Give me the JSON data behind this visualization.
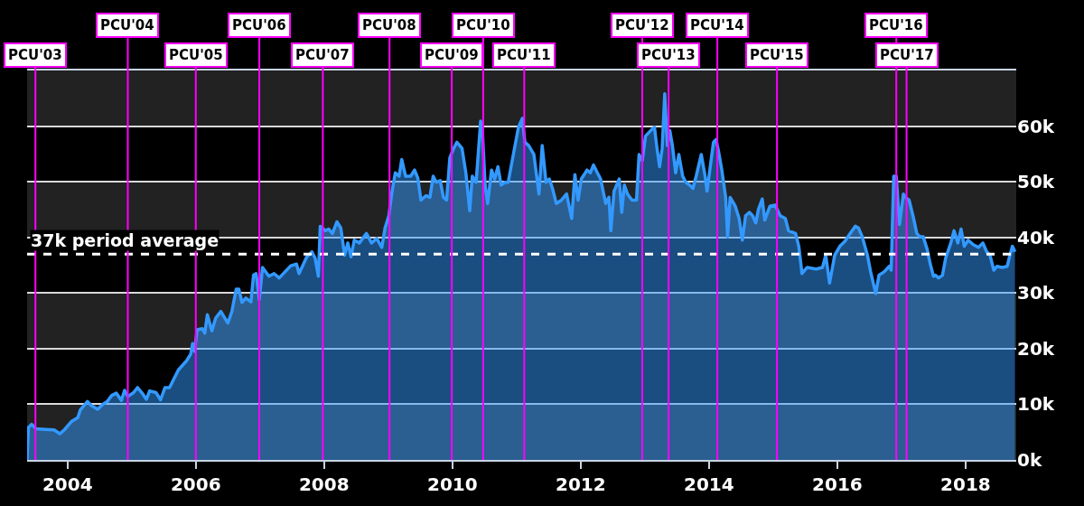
{
  "chart_data": {
    "type": "area",
    "x": [
      2003.37,
      2003.39,
      2003.44,
      2003.51,
      2003.65,
      2003.79,
      2003.88,
      2003.95,
      2004.06,
      2004.16,
      2004.2,
      2004.31,
      2004.37,
      2004.47,
      2004.55,
      2004.62,
      2004.69,
      2004.76,
      2004.84,
      2004.89,
      2004.94,
      2005.03,
      2005.09,
      2005.17,
      2005.23,
      2005.28,
      2005.38,
      2005.45,
      2005.52,
      2005.59,
      2005.66,
      2005.73,
      2005.8,
      2005.86,
      2005.92,
      2005.95,
      2005.98,
      2006.02,
      2006.1,
      2006.14,
      2006.18,
      2006.25,
      2006.31,
      2006.39,
      2006.5,
      2006.56,
      2006.63,
      2006.67,
      2006.72,
      2006.78,
      2006.86,
      2006.9,
      2006.94,
      2006.99,
      2007.04,
      2007.14,
      2007.22,
      2007.3,
      2007.48,
      2007.57,
      2007.61,
      2007.73,
      2007.81,
      2007.86,
      2007.91,
      2007.94,
      2008.02,
      2008.07,
      2008.13,
      2008.2,
      2008.26,
      2008.32,
      2008.37,
      2008.42,
      2008.47,
      2008.55,
      2008.66,
      2008.74,
      2008.82,
      2008.9,
      2008.95,
      2009.01,
      2009.06,
      2009.11,
      2009.17,
      2009.21,
      2009.27,
      2009.35,
      2009.41,
      2009.46,
      2009.51,
      2009.59,
      2009.65,
      2009.7,
      2009.75,
      2009.81,
      2009.86,
      2009.91,
      2009.96,
      2010.02,
      2010.07,
      2010.15,
      2010.21,
      2010.27,
      2010.31,
      2010.37,
      2010.44,
      2010.47,
      2010.51,
      2010.55,
      2010.61,
      2010.66,
      2010.71,
      2010.76,
      2010.82,
      2010.87,
      2010.95,
      2011.03,
      2011.09,
      2011.13,
      2011.19,
      2011.27,
      2011.35,
      2011.4,
      2011.46,
      2011.51,
      2011.56,
      2011.62,
      2011.7,
      2011.78,
      2011.86,
      2011.91,
      2011.96,
      2012.01,
      2012.1,
      2012.15,
      2012.2,
      2012.26,
      2012.31,
      2012.39,
      2012.44,
      2012.47,
      2012.52,
      2012.6,
      2012.64,
      2012.68,
      2012.73,
      2012.8,
      2012.87,
      2012.91,
      2012.96,
      2013.01,
      2013.1,
      2013.15,
      2013.19,
      2013.23,
      2013.27,
      2013.31,
      2013.35,
      2013.39,
      2013.43,
      2013.48,
      2013.53,
      2013.59,
      2013.64,
      2013.7,
      2013.75,
      2013.8,
      2013.88,
      2013.94,
      2013.97,
      2014.02,
      2014.07,
      2014.11,
      2014.15,
      2014.2,
      2014.26,
      2014.29,
      2014.33,
      2014.41,
      2014.47,
      2014.52,
      2014.57,
      2014.63,
      2014.68,
      2014.73,
      2014.77,
      2014.83,
      2014.87,
      2014.95,
      2015.03,
      2015.11,
      2015.19,
      2015.24,
      2015.35,
      2015.4,
      2015.45,
      2015.53,
      2015.67,
      2015.77,
      2015.82,
      2015.88,
      2015.96,
      2016.04,
      2016.12,
      2016.2,
      2016.28,
      2016.33,
      2016.39,
      2016.47,
      2016.52,
      2016.6,
      2016.65,
      2016.73,
      2016.81,
      2016.84,
      2016.88,
      2016.92,
      2016.97,
      2017.03,
      2017.06,
      2017.12,
      2017.18,
      2017.24,
      2017.29,
      2017.34,
      2017.4,
      2017.45,
      2017.5,
      2017.53,
      2017.58,
      2017.64,
      2017.69,
      2017.77,
      2017.82,
      2017.88,
      2017.93,
      2017.98,
      2018.04,
      2018.12,
      2018.2,
      2018.27,
      2018.33,
      2018.38,
      2018.44,
      2018.49,
      2018.57,
      2018.65,
      2018.68,
      2018.73,
      2018.77
    ],
    "series": [
      {
        "color": "#3399ff",
        "values": [
          0,
          5800,
          6400,
          5600,
          5500,
          5400,
          4700,
          5400,
          6900,
          7600,
          9000,
          10500,
          9800,
          9100,
          10000,
          10500,
          11600,
          12000,
          10700,
          12500,
          11400,
          12100,
          13000,
          11900,
          10900,
          12400,
          12100,
          10800,
          13000,
          13000,
          14600,
          16200,
          17100,
          17900,
          19000,
          20900,
          19500,
          23400,
          23600,
          22800,
          26100,
          23200,
          25500,
          26700,
          24600,
          26600,
          30700,
          30700,
          28300,
          29100,
          28400,
          33200,
          33500,
          28800,
          34600,
          33000,
          33500,
          32700,
          34900,
          35200,
          33500,
          36500,
          37400,
          36300,
          33000,
          42000,
          41200,
          41500,
          40700,
          42800,
          41700,
          36800,
          39000,
          36500,
          39500,
          39000,
          40700,
          39000,
          39800,
          38200,
          41700,
          43900,
          48300,
          51600,
          51000,
          54000,
          51000,
          51000,
          52100,
          50700,
          46700,
          47500,
          47200,
          51000,
          49900,
          50200,
          47200,
          46700,
          54300,
          56000,
          57100,
          56000,
          51600,
          44800,
          51000,
          49900,
          60900,
          58700,
          49400,
          46100,
          52100,
          50500,
          52700,
          49400,
          49900,
          49900,
          54900,
          59800,
          61400,
          57100,
          56500,
          54900,
          47800,
          56500,
          49900,
          50500,
          48800,
          46100,
          46700,
          47800,
          43400,
          51300,
          46700,
          50500,
          52100,
          51600,
          53000,
          51600,
          50500,
          46100,
          47200,
          41200,
          48300,
          50500,
          44500,
          49400,
          47800,
          46700,
          46700,
          54900,
          53800,
          58200,
          59300,
          59800,
          56000,
          52700,
          56000,
          65800,
          56500,
          59200,
          56500,
          51600,
          54900,
          51000,
          49900,
          49400,
          48800,
          51000,
          54900,
          51000,
          48300,
          52700,
          57100,
          57600,
          55400,
          52100,
          47200,
          40100,
          47200,
          45600,
          43400,
          39500,
          43900,
          44500,
          43900,
          42600,
          45000,
          46900,
          43100,
          45600,
          45800,
          43900,
          43400,
          41200,
          40700,
          38400,
          33500,
          34600,
          34300,
          34600,
          36800,
          31800,
          36800,
          38400,
          39300,
          40700,
          42000,
          41700,
          40100,
          36800,
          33800,
          29900,
          33200,
          33800,
          34800,
          34100,
          51000,
          51000,
          42300,
          47800,
          47200,
          46700,
          43900,
          40700,
          40100,
          40100,
          37900,
          35200,
          33000,
          33200,
          32700,
          33200,
          36300,
          39000,
          41200,
          39000,
          41500,
          38400,
          39500,
          38700,
          38200,
          39000,
          37400,
          36800,
          34100,
          34800,
          34600,
          34800,
          36300,
          38400,
          37400
        ]
      }
    ],
    "xlim": [
      2003.37,
      2018.79
    ],
    "xticks": [
      2004,
      2006,
      2008,
      2010,
      2012,
      2014,
      2016,
      2018
    ],
    "ylim": [
      0,
      70000
    ],
    "yticks": [
      {
        "value": 0,
        "label": "0k"
      },
      {
        "value": 10000,
        "label": "10k"
      },
      {
        "value": 20000,
        "label": "20k"
      },
      {
        "value": 30000,
        "label": "30k"
      },
      {
        "value": 40000,
        "label": "40k"
      },
      {
        "value": 50000,
        "label": "50k"
      },
      {
        "value": 60000,
        "label": "60k"
      }
    ],
    "grid": "y",
    "bands": [
      {
        "axis": "y",
        "from": 0,
        "to": 10000,
        "color": "#222222"
      },
      {
        "axis": "y",
        "from": 20000,
        "to": 30000,
        "color": "#222222"
      },
      {
        "axis": "y",
        "from": 40000,
        "to": 50000,
        "color": "#222222"
      },
      {
        "axis": "y",
        "from": 60000,
        "to": 70000,
        "color": "#222222"
      }
    ],
    "ref_lines": [
      {
        "axis": "y",
        "value": 37000,
        "label": "37k period average",
        "color": "#ffffff",
        "line_style": "dashed"
      },
      {
        "axis": "x",
        "value": 2003.5,
        "label": "PCU'03",
        "color": "#ff00ff"
      },
      {
        "axis": "x",
        "value": 2004.94,
        "label": "PCU'04",
        "color": "#ff00ff"
      },
      {
        "axis": "x",
        "value": 2006.0,
        "label": "PCU'05",
        "color": "#ff00ff"
      },
      {
        "axis": "x",
        "value": 2006.99,
        "label": "PCU'06",
        "color": "#ff00ff"
      },
      {
        "axis": "x",
        "value": 2007.98,
        "label": "PCU'07",
        "color": "#ff00ff"
      },
      {
        "axis": "x",
        "value": 2009.02,
        "label": "PCU'08",
        "color": "#ff00ff"
      },
      {
        "axis": "x",
        "value": 2009.99,
        "label": "PCU'09",
        "color": "#ff00ff"
      },
      {
        "axis": "x",
        "value": 2010.48,
        "label": "PCU'10",
        "color": "#ff00ff"
      },
      {
        "axis": "x",
        "value": 2011.12,
        "label": "PCU'11",
        "color": "#ff00ff"
      },
      {
        "axis": "x",
        "value": 2012.96,
        "label": "PCU'12",
        "color": "#ff00ff"
      },
      {
        "axis": "x",
        "value": 2013.37,
        "label": "PCU'13",
        "color": "#ff00ff"
      },
      {
        "axis": "x",
        "value": 2014.13,
        "label": "PCU'14",
        "color": "#ff00ff"
      },
      {
        "axis": "x",
        "value": 2015.06,
        "label": "PCU'15",
        "color": "#ff00ff"
      },
      {
        "axis": "x",
        "value": 2016.92,
        "label": "PCU'16",
        "color": "#ff00ff"
      },
      {
        "axis": "x",
        "value": 2017.08,
        "label": "PCU'17",
        "color": "#ff00ff"
      }
    ]
  }
}
